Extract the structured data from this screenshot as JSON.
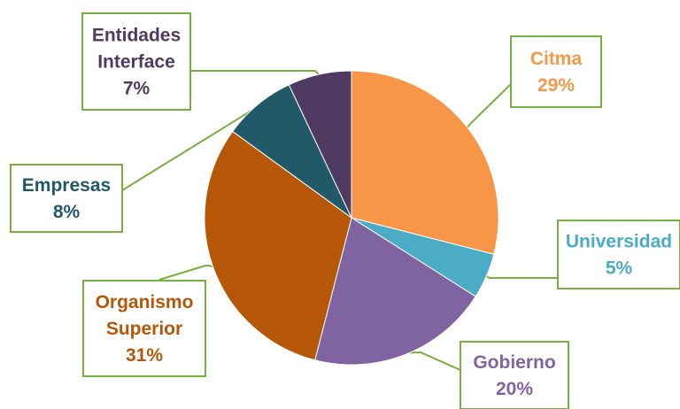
{
  "chart_data": {
    "type": "pie",
    "title": "",
    "slices": [
      {
        "label": "Citma",
        "value": 29,
        "display": "29%",
        "color": "#F79646",
        "label_lines": [
          "Citma"
        ]
      },
      {
        "label": "Universidad",
        "value": 5,
        "display": "5%",
        "color": "#4BACC6",
        "label_lines": [
          "Universidad"
        ]
      },
      {
        "label": "Gobierno",
        "value": 20,
        "display": "20%",
        "color": "#8064A2",
        "label_lines": [
          "Gobierno"
        ]
      },
      {
        "label": "Organismo Superior",
        "value": 31,
        "display": "31%",
        "color": "#B65708",
        "label_lines": [
          "Organismo",
          "Superior"
        ]
      },
      {
        "label": "Empresas",
        "value": 8,
        "display": "8%",
        "color": "#215968",
        "label_lines": [
          "Empresas"
        ]
      },
      {
        "label": "Entidades Interface",
        "value": 7,
        "display": "7%",
        "color": "#4F3B62",
        "label_lines": [
          "Entidades",
          "Interface"
        ]
      }
    ],
    "label_colors": [
      "#F79646",
      "#4BACC6",
      "#8064A2",
      "#B65708",
      "#215968",
      "#4F3B62"
    ],
    "callout_border_color": "#77B041",
    "start_angle": "12 o'clock, clockwise"
  }
}
